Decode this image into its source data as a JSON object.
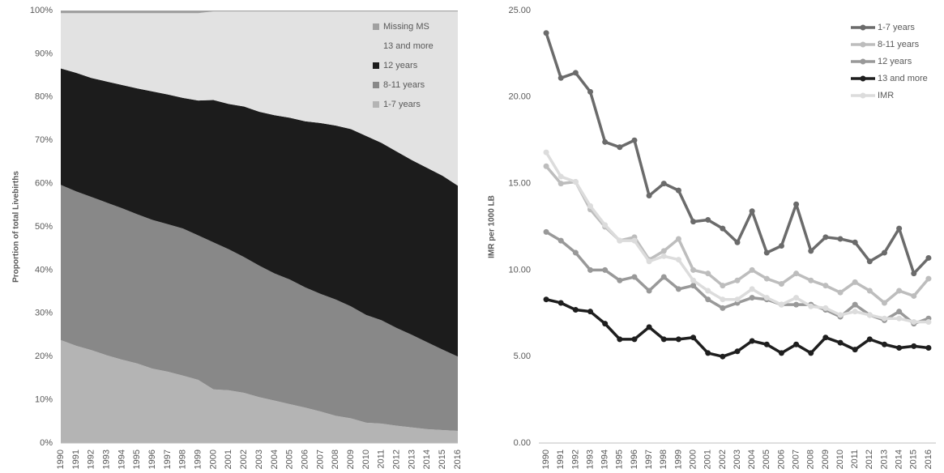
{
  "chart_data": [
    {
      "type": "area",
      "stacked": true,
      "y_label": "Proportion of total Livebirths",
      "categories": [
        "1990",
        "1991",
        "1992",
        "1993",
        "1994",
        "1995",
        "1996",
        "1997",
        "1998",
        "1999",
        "2000",
        "2001",
        "2002",
        "2003",
        "2004",
        "2005",
        "2006",
        "2007",
        "2008",
        "2009",
        "2010",
        "2011",
        "2012",
        "2013",
        "2014",
        "2015",
        "2016"
      ],
      "series": [
        {
          "name": "1-7 years",
          "color": "#b4b4b4",
          "values": [
            23.8,
            22.5,
            21.5,
            20.3,
            19.3,
            18.4,
            17.2,
            16.5,
            15.6,
            14.6,
            12.4,
            12.2,
            11.6,
            10.6,
            9.8,
            9.0,
            8.2,
            7.3,
            6.3,
            5.7,
            4.7,
            4.5,
            4.0,
            3.6,
            3.2,
            3.0,
            2.8
          ]
        },
        {
          "name": "8-11 years",
          "color": "#888888",
          "values": [
            35.9,
            35.7,
            35.4,
            35.3,
            35.0,
            34.5,
            34.4,
            34.1,
            34.0,
            33.4,
            34.0,
            32.6,
            31.4,
            30.4,
            29.4,
            28.8,
            27.8,
            27.2,
            26.9,
            25.9,
            24.9,
            23.9,
            22.6,
            21.4,
            20.1,
            18.6,
            17.2
          ]
        },
        {
          "name": "12 years",
          "color": "#1c1c1c",
          "values": [
            26.9,
            27.4,
            27.5,
            28.0,
            28.5,
            29.1,
            29.7,
            30.0,
            30.2,
            31.2,
            32.9,
            33.6,
            34.8,
            35.6,
            36.6,
            37.4,
            38.4,
            39.5,
            40.2,
            41.0,
            41.4,
            41.0,
            40.8,
            40.4,
            40.3,
            40.2,
            39.5
          ]
        },
        {
          "name": "13 and more",
          "color": "#e2e2e2",
          "values": [
            12.8,
            13.8,
            15.0,
            15.8,
            16.6,
            17.4,
            18.1,
            18.8,
            19.6,
            20.2,
            20.5,
            21.4,
            22.0,
            23.2,
            24.0,
            24.6,
            25.4,
            25.8,
            26.4,
            27.2,
            28.8,
            30.4,
            32.4,
            34.4,
            36.2,
            38.0,
            40.3
          ]
        },
        {
          "name": "Missing MS",
          "color": "#a0a0a0",
          "values": [
            0.6,
            0.6,
            0.6,
            0.6,
            0.6,
            0.6,
            0.6,
            0.6,
            0.6,
            0.6,
            0.2,
            0.2,
            0.2,
            0.2,
            0.2,
            0.2,
            0.2,
            0.2,
            0.2,
            0.2,
            0.2,
            0.2,
            0.2,
            0.2,
            0.2,
            0.2,
            0.2
          ]
        }
      ],
      "ylim": [
        0,
        100
      ],
      "yticks": [
        {
          "value": 0,
          "label": "0%"
        },
        {
          "value": 10,
          "label": "10%"
        },
        {
          "value": 20,
          "label": "20%"
        },
        {
          "value": 30,
          "label": "30%"
        },
        {
          "value": 40,
          "label": "40%"
        },
        {
          "value": 50,
          "label": "50%"
        },
        {
          "value": 60,
          "label": "60%"
        },
        {
          "value": 70,
          "label": "70%"
        },
        {
          "value": 80,
          "label": "80%"
        },
        {
          "value": 90,
          "label": "90%"
        },
        {
          "value": 100,
          "label": "100%"
        }
      ],
      "grid": false,
      "legend": "upper right"
    },
    {
      "type": "line",
      "y_label": "IMR per 1000 LB",
      "categories": [
        "1990",
        "1991",
        "1992",
        "1993",
        "1994",
        "1995",
        "1996",
        "1997",
        "1998",
        "1999",
        "2000",
        "2001",
        "2002",
        "2003",
        "2004",
        "2005",
        "2006",
        "2007",
        "2008",
        "2009",
        "2010",
        "2011",
        "2012",
        "2013",
        "2014",
        "2015",
        "2016"
      ],
      "series": [
        {
          "name": "1-7 years",
          "color": "#6b6b6b",
          "values": [
            23.7,
            21.1,
            21.4,
            20.3,
            17.4,
            17.1,
            17.5,
            14.3,
            15.0,
            14.6,
            12.8,
            12.9,
            12.4,
            11.6,
            13.4,
            11.0,
            11.4,
            13.8,
            11.1,
            11.9,
            11.8,
            11.6,
            10.5,
            11.0,
            12.4,
            9.8,
            10.7
          ]
        },
        {
          "name": "8-11 years",
          "color": "#bdbdbd",
          "values": [
            16.0,
            15.0,
            15.1,
            13.5,
            12.5,
            11.7,
            11.9,
            10.6,
            11.1,
            11.8,
            10.0,
            9.8,
            9.1,
            9.4,
            10.0,
            9.5,
            9.2,
            9.8,
            9.4,
            9.1,
            8.7,
            9.3,
            8.8,
            8.1,
            8.8,
            8.5,
            9.5
          ]
        },
        {
          "name": "12 years",
          "color": "#999999",
          "values": [
            12.2,
            11.7,
            11.0,
            10.0,
            10.0,
            9.4,
            9.6,
            8.8,
            9.6,
            8.9,
            9.1,
            8.3,
            7.8,
            8.1,
            8.4,
            8.3,
            8.0,
            8.0,
            8.0,
            7.7,
            7.3,
            8.0,
            7.4,
            7.1,
            7.6,
            6.9,
            7.2
          ]
        },
        {
          "name": "13 and more",
          "color": "#1e1e1e",
          "values": [
            8.3,
            8.1,
            7.7,
            7.6,
            6.9,
            6.0,
            6.0,
            6.7,
            6.0,
            6.0,
            6.1,
            5.2,
            5.0,
            5.3,
            5.9,
            5.7,
            5.2,
            5.7,
            5.2,
            6.1,
            5.8,
            5.4,
            6.0,
            5.7,
            5.5,
            5.6,
            5.5
          ]
        },
        {
          "name": "IMR",
          "color": "#dcdcdc",
          "values": [
            16.8,
            15.4,
            15.1,
            13.7,
            12.6,
            11.7,
            11.7,
            10.5,
            10.8,
            10.6,
            9.4,
            8.8,
            8.3,
            8.3,
            8.9,
            8.4,
            8.0,
            8.4,
            7.9,
            7.8,
            7.4,
            7.6,
            7.4,
            7.2,
            7.2,
            7.0,
            7.0
          ]
        }
      ],
      "ylim": [
        0,
        25
      ],
      "yticks": [
        {
          "value": 0,
          "label": "0.00"
        },
        {
          "value": 5,
          "label": "5.00"
        },
        {
          "value": 10,
          "label": "10.00"
        },
        {
          "value": 15,
          "label": "15.00"
        },
        {
          "value": 20,
          "label": "20.00"
        },
        {
          "value": 25,
          "label": "25.00"
        }
      ],
      "grid": false,
      "legend": "upper right"
    }
  ]
}
